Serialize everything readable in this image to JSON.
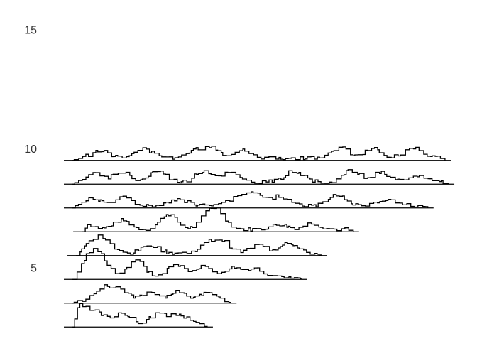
{
  "chart_data": {
    "type": "line",
    "title": "",
    "xlabel": "",
    "ylabel": "",
    "grid": false,
    "legend": "none",
    "y_ticks": [
      "5",
      "10",
      "15"
    ],
    "y_tick_values": [
      5,
      10,
      15
    ],
    "ylim": [
      2.5,
      17.5
    ],
    "xlim": [
      0,
      540
    ],
    "line_color": "#000000",
    "tick_color": "#333333",
    "traces": [
      {
        "id": 3,
        "x_start": 0,
        "x_end": 208,
        "baseline": 3,
        "peak_height": 0.8,
        "seed": 3,
        "peaks": [
          [
            20,
            0.9
          ],
          [
            45,
            0.55
          ],
          [
            80,
            0.6
          ],
          [
            130,
            0.55
          ],
          [
            160,
            0.5
          ]
        ]
      },
      {
        "id": 4,
        "x_start": 0,
        "x_end": 241,
        "baseline": 4,
        "peak_height": 0.45,
        "seed": 4,
        "peaks": [
          [
            55,
            0.7
          ],
          [
            80,
            0.5
          ],
          [
            120,
            0.45
          ],
          [
            160,
            0.45
          ],
          [
            200,
            0.35
          ]
        ]
      },
      {
        "id": 5,
        "x_start": 0,
        "x_end": 339,
        "baseline": 5,
        "peak_height": 0.9,
        "seed": 5,
        "peaks": [
          [
            35,
            0.9
          ],
          [
            50,
            0.85
          ],
          [
            100,
            0.8
          ],
          [
            155,
            0.65
          ],
          [
            195,
            0.55
          ],
          [
            235,
            0.5
          ],
          [
            265,
            0.4
          ]
        ]
      },
      {
        "id": 6,
        "x_start": 5,
        "x_end": 367,
        "baseline": 6,
        "peak_height": 0.55,
        "seed": 6,
        "peaks": [
          [
            40,
            0.5
          ],
          [
            55,
            0.55
          ],
          [
            120,
            0.4
          ],
          [
            200,
            0.45
          ],
          [
            220,
            0.55
          ],
          [
            270,
            0.4
          ],
          [
            312,
            0.55
          ]
        ]
      },
      {
        "id": 7,
        "x_start": 13,
        "x_end": 412,
        "baseline": 7,
        "peak_height": 0.7,
        "seed": 7,
        "peaks": [
          [
            30,
            0.25
          ],
          [
            80,
            0.45
          ],
          [
            145,
            0.75
          ],
          [
            200,
            0.65
          ],
          [
            215,
            0.7
          ],
          [
            300,
            0.25
          ],
          [
            345,
            0.3
          ]
        ]
      },
      {
        "id": 8,
        "x_start": 0,
        "x_end": 516,
        "baseline": 8,
        "peak_height": 0.6,
        "seed": 8,
        "peaks": [
          [
            40,
            0.35
          ],
          [
            80,
            0.4
          ],
          [
            160,
            0.3
          ],
          [
            240,
            0.35
          ],
          [
            265,
            0.65
          ],
          [
            300,
            0.45
          ],
          [
            380,
            0.55
          ],
          [
            450,
            0.3
          ]
        ]
      },
      {
        "id": 9,
        "x_start": 0,
        "x_end": 545,
        "baseline": 9,
        "peak_height": 0.6,
        "seed": 9,
        "peaks": [
          [
            40,
            0.4
          ],
          [
            80,
            0.5
          ],
          [
            130,
            0.55
          ],
          [
            195,
            0.55
          ],
          [
            230,
            0.45
          ],
          [
            320,
            0.55
          ],
          [
            400,
            0.55
          ],
          [
            440,
            0.45
          ],
          [
            495,
            0.3
          ]
        ]
      },
      {
        "id": 10,
        "x_start": 0,
        "x_end": 540,
        "baseline": 10,
        "peak_height": 0.55,
        "seed": 10,
        "peaks": [
          [
            50,
            0.4
          ],
          [
            110,
            0.45
          ],
          [
            180,
            0.35
          ],
          [
            205,
            0.55
          ],
          [
            250,
            0.4
          ],
          [
            385,
            0.5
          ],
          [
            430,
            0.45
          ],
          [
            485,
            0.55
          ]
        ]
      }
    ]
  }
}
